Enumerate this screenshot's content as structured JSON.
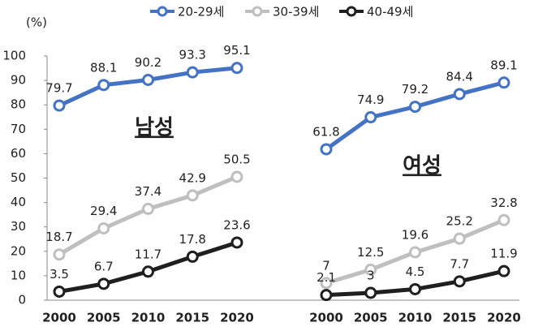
{
  "chart_data": {
    "type": "line",
    "y_label": "(%)",
    "ylim": [
      0,
      100
    ],
    "yticks": [
      0,
      10,
      20,
      30,
      40,
      50,
      60,
      70,
      80,
      90,
      100
    ],
    "panels": [
      "남성",
      "여성"
    ],
    "categories": [
      "2000",
      "2005",
      "2010",
      "2015",
      "2020",
      "2000",
      "2005",
      "2010",
      "2015",
      "2020"
    ],
    "series": [
      {
        "name": "20-29세",
        "color": "#4472c4",
        "label_color": "#4472c4",
        "values": [
          79.7,
          88.1,
          90.2,
          93.3,
          95.1,
          61.8,
          74.9,
          79.2,
          84.4,
          89.1
        ]
      },
      {
        "name": "30-39세",
        "color": "#bfbfbf",
        "label_color": "#808080",
        "values": [
          18.7,
          29.4,
          37.4,
          42.9,
          50.5,
          7.0,
          12.5,
          19.6,
          25.2,
          32.8
        ]
      },
      {
        "name": "40-49세",
        "color": "#1f1f1f",
        "label_color": "#1f1f1f",
        "values": [
          3.5,
          6.7,
          11.7,
          17.8,
          23.6,
          2.1,
          3.0,
          4.5,
          7.7,
          11.9
        ]
      }
    ]
  }
}
